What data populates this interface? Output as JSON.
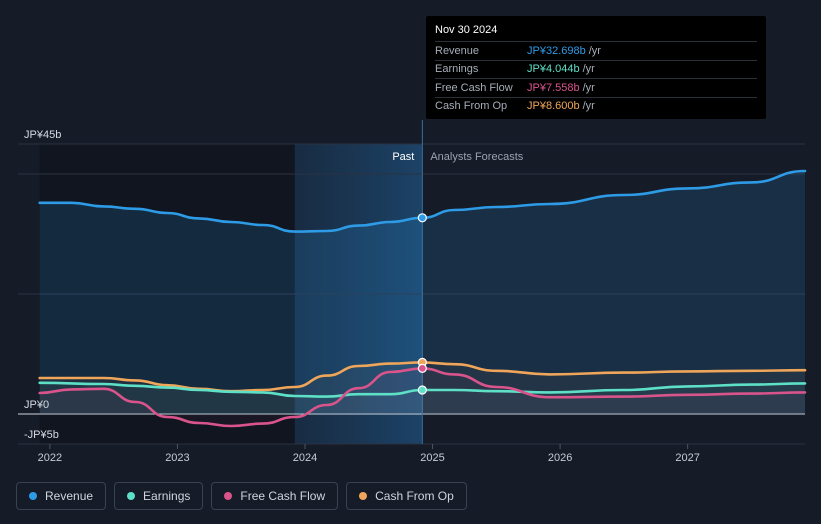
{
  "tooltip": {
    "date": "Nov 30 2024",
    "rows": [
      {
        "label": "Revenue",
        "value": "JP¥32.698b",
        "unit": "/yr",
        "color": "#2e9be6"
      },
      {
        "label": "Earnings",
        "value": "JP¥4.044b",
        "unit": "/yr",
        "color": "#5ee0c7"
      },
      {
        "label": "Free Cash Flow",
        "value": "JP¥7.558b",
        "unit": "/yr",
        "color": "#d9548b"
      },
      {
        "label": "Cash From Op",
        "value": "JP¥8.600b",
        "unit": "/yr",
        "color": "#f0a65a"
      }
    ]
  },
  "legend": [
    {
      "label": "Revenue",
      "color": "#2e9be6"
    },
    {
      "label": "Earnings",
      "color": "#5ee0c7"
    },
    {
      "label": "Free Cash Flow",
      "color": "#d9548b"
    },
    {
      "label": "Cash From Op",
      "color": "#f0a65a"
    }
  ],
  "chart_data": {
    "type": "line",
    "y_axis_labels": [
      "JP¥45b",
      "JP¥0",
      "-JP¥5b"
    ],
    "x_tick_labels": [
      "2022",
      "2023",
      "2024",
      "2025",
      "2026",
      "2027"
    ],
    "x_ticks": [
      2022,
      2023,
      2024,
      2025,
      2026,
      2027
    ],
    "xlim": [
      2021.75,
      2027.92
    ],
    "ylim": [
      -5,
      45
    ],
    "past_label": "Past",
    "forecast_label": "Analysts Forecasts",
    "forecast_start": 2024.92,
    "highlight_start": 2023.92,
    "gridlines": [
      45,
      40,
      20,
      0,
      -5
    ],
    "series": [
      {
        "name": "Revenue",
        "color": "#2e9be6",
        "area": true,
        "points": [
          [
            2021.92,
            35.2
          ],
          [
            2022.17,
            35.2
          ],
          [
            2022.42,
            34.6
          ],
          [
            2022.67,
            34.2
          ],
          [
            2022.92,
            33.5
          ],
          [
            2023.17,
            32.6
          ],
          [
            2023.42,
            32.0
          ],
          [
            2023.67,
            31.5
          ],
          [
            2023.92,
            30.4
          ],
          [
            2024.17,
            30.5
          ],
          [
            2024.42,
            31.4
          ],
          [
            2024.67,
            32.0
          ],
          [
            2024.92,
            32.7
          ],
          [
            2025.17,
            34.0
          ],
          [
            2025.5,
            34.5
          ],
          [
            2025.92,
            35.0
          ],
          [
            2026.5,
            36.5
          ],
          [
            2027.0,
            37.6
          ],
          [
            2027.5,
            38.6
          ],
          [
            2027.92,
            40.5
          ]
        ]
      },
      {
        "name": "Cash From Op",
        "color": "#f0a65a",
        "area": false,
        "points": [
          [
            2021.92,
            6.0
          ],
          [
            2022.42,
            6.0
          ],
          [
            2022.67,
            5.6
          ],
          [
            2022.92,
            4.8
          ],
          [
            2023.17,
            4.2
          ],
          [
            2023.42,
            3.8
          ],
          [
            2023.67,
            4.0
          ],
          [
            2023.92,
            4.5
          ],
          [
            2024.17,
            6.4
          ],
          [
            2024.42,
            8.0
          ],
          [
            2024.67,
            8.4
          ],
          [
            2024.92,
            8.6
          ],
          [
            2025.17,
            8.3
          ],
          [
            2025.5,
            7.2
          ],
          [
            2025.92,
            6.6
          ],
          [
            2026.5,
            6.9
          ],
          [
            2027.0,
            7.1
          ],
          [
            2027.5,
            7.2
          ],
          [
            2027.92,
            7.3
          ]
        ]
      },
      {
        "name": "Earnings",
        "color": "#5ee0c7",
        "area": false,
        "points": [
          [
            2021.92,
            5.2
          ],
          [
            2022.42,
            5.0
          ],
          [
            2022.67,
            4.7
          ],
          [
            2022.92,
            4.4
          ],
          [
            2023.17,
            4.0
          ],
          [
            2023.42,
            3.7
          ],
          [
            2023.67,
            3.6
          ],
          [
            2023.92,
            3.0
          ],
          [
            2024.17,
            2.9
          ],
          [
            2024.42,
            3.3
          ],
          [
            2024.67,
            3.3
          ],
          [
            2024.92,
            4.0
          ],
          [
            2025.17,
            4.0
          ],
          [
            2025.5,
            3.8
          ],
          [
            2025.92,
            3.6
          ],
          [
            2026.5,
            4.0
          ],
          [
            2027.0,
            4.6
          ],
          [
            2027.5,
            4.9
          ],
          [
            2027.92,
            5.1
          ]
        ]
      },
      {
        "name": "Free Cash Flow",
        "color": "#d9548b",
        "area": false,
        "points": [
          [
            2021.92,
            3.5
          ],
          [
            2022.17,
            4.1
          ],
          [
            2022.42,
            4.2
          ],
          [
            2022.67,
            2.0
          ],
          [
            2022.92,
            -0.5
          ],
          [
            2023.17,
            -1.5
          ],
          [
            2023.42,
            -2.0
          ],
          [
            2023.67,
            -1.6
          ],
          [
            2023.92,
            -0.5
          ],
          [
            2024.17,
            1.5
          ],
          [
            2024.42,
            4.3
          ],
          [
            2024.67,
            7.0
          ],
          [
            2024.92,
            7.6
          ],
          [
            2025.17,
            6.6
          ],
          [
            2025.5,
            4.5
          ],
          [
            2025.92,
            2.8
          ],
          [
            2026.5,
            2.9
          ],
          [
            2027.0,
            3.2
          ],
          [
            2027.5,
            3.4
          ],
          [
            2027.92,
            3.6
          ]
        ]
      }
    ]
  }
}
